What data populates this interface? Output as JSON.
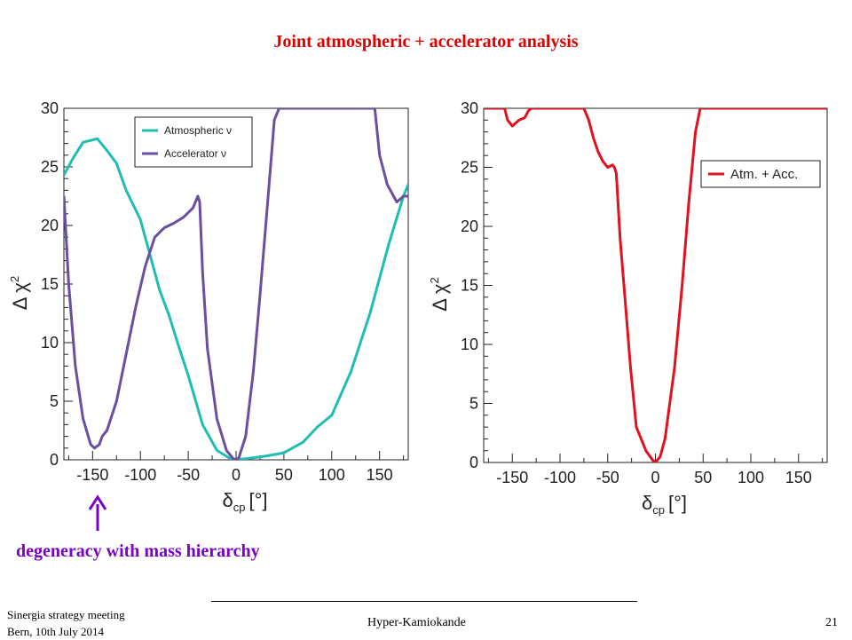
{
  "slide": {
    "title": "Joint atmospheric + accelerator analysis",
    "annotation": "degeneracy with mass hierarchy",
    "footer_left_line1": "Sinergia strategy meeting",
    "footer_left_line2": "Bern, 10th July 2014",
    "footer_center": "Hyper-Kamiokande",
    "page_number": "21"
  },
  "colors": {
    "title": "#e00000",
    "annotation": "#7a00c8",
    "atmospheric": "#1fbdb4",
    "accelerator": "#6a4ea0",
    "combined": "#e0121f",
    "arrow": "#7a00c8"
  },
  "chart_data": [
    {
      "type": "line",
      "xlabel_main": "δ",
      "xlabel_sub": "cp",
      "xlabel_unit": "[°]",
      "ylabel_main": "Δ χ",
      "ylabel_sup": "2",
      "xlim": [
        -180,
        180
      ],
      "ylim": [
        0,
        30
      ],
      "x_ticks": [
        -150,
        -100,
        -50,
        0,
        50,
        100,
        150
      ],
      "y_ticks": [
        0,
        5,
        10,
        15,
        20,
        25,
        30
      ],
      "legend_position": "top-right",
      "series": [
        {
          "name": "Atmospheric ν",
          "color": "#1fbdb4",
          "points": [
            [
              -180,
              24.3
            ],
            [
              -170,
              25.8
            ],
            [
              -160,
              27.1
            ],
            [
              -145,
              27.4
            ],
            [
              -135,
              26.4
            ],
            [
              -125,
              25.3
            ],
            [
              -115,
              23
            ],
            [
              -100,
              20.5
            ],
            [
              -90,
              17.5
            ],
            [
              -80,
              14.5
            ],
            [
              -70,
              12.3
            ],
            [
              -60,
              9.7
            ],
            [
              -50,
              7.2
            ],
            [
              -35,
              3
            ],
            [
              -20,
              0.8
            ],
            [
              -5,
              0.05
            ],
            [
              0,
              0
            ],
            [
              10,
              0.1
            ],
            [
              30,
              0.3
            ],
            [
              50,
              0.6
            ],
            [
              70,
              1.5
            ],
            [
              85,
              2.8
            ],
            [
              100,
              3.8
            ],
            [
              120,
              7.5
            ],
            [
              140,
              12.5
            ],
            [
              160,
              18.5
            ],
            [
              175,
              22.5
            ],
            [
              180,
              23.5
            ]
          ]
        },
        {
          "name": "Accelerator ν",
          "color": "#6a4ea0",
          "points": [
            [
              -180,
              22.5
            ],
            [
              -175,
              15
            ],
            [
              -168,
              8
            ],
            [
              -160,
              3.5
            ],
            [
              -152,
              1.3
            ],
            [
              -148,
              1
            ],
            [
              -143,
              1.3
            ],
            [
              -140,
              2
            ],
            [
              -135,
              2.5
            ],
            [
              -125,
              5
            ],
            [
              -115,
              9
            ],
            [
              -105,
              13
            ],
            [
              -95,
              16.5
            ],
            [
              -85,
              19
            ],
            [
              -75,
              19.8
            ],
            [
              -65,
              20.2
            ],
            [
              -55,
              20.7
            ],
            [
              -45,
              21.5
            ],
            [
              -40,
              22.5
            ],
            [
              -38,
              22
            ],
            [
              -35,
              16
            ],
            [
              -30,
              9.5
            ],
            [
              -20,
              3.5
            ],
            [
              -10,
              0.8
            ],
            [
              -3,
              0.1
            ],
            [
              0,
              0
            ],
            [
              3,
              0.2
            ],
            [
              10,
              2
            ],
            [
              18,
              7.5
            ],
            [
              25,
              14
            ],
            [
              33,
              22
            ],
            [
              40,
              29
            ],
            [
              45,
              30
            ],
            [
              145,
              30
            ],
            [
              150,
              26
            ],
            [
              158,
              23.5
            ],
            [
              168,
              22
            ],
            [
              175,
              22.5
            ],
            [
              180,
              22.5
            ]
          ]
        }
      ]
    },
    {
      "type": "line",
      "xlabel_main": "δ",
      "xlabel_sub": "cp",
      "xlabel_unit": "[°]",
      "ylabel_main": "Δ χ",
      "ylabel_sup": "2",
      "xlim": [
        -180,
        180
      ],
      "ylim": [
        0,
        30
      ],
      "x_ticks": [
        -150,
        -100,
        -50,
        0,
        50,
        100,
        150
      ],
      "y_ticks": [
        0,
        5,
        10,
        15,
        20,
        25,
        30
      ],
      "legend_position": "top-right",
      "series": [
        {
          "name": "Atm. + Acc.",
          "color": "#e0121f",
          "points": [
            [
              -180,
              30
            ],
            [
              -158,
              30
            ],
            [
              -155,
              29
            ],
            [
              -150,
              28.5
            ],
            [
              -143,
              29
            ],
            [
              -137,
              29.2
            ],
            [
              -133,
              29.8
            ],
            [
              -130,
              30
            ],
            [
              -75,
              30
            ],
            [
              -70,
              29
            ],
            [
              -65,
              27.5
            ],
            [
              -60,
              26.3
            ],
            [
              -55,
              25.5
            ],
            [
              -50,
              25
            ],
            [
              -45,
              25.2
            ],
            [
              -43,
              25
            ],
            [
              -41,
              24.5
            ],
            [
              -37,
              19
            ],
            [
              -32,
              14
            ],
            [
              -26,
              8
            ],
            [
              -20,
              3
            ],
            [
              -10,
              1
            ],
            [
              -3,
              0.2
            ],
            [
              0,
              0
            ],
            [
              5,
              0.5
            ],
            [
              10,
              2
            ],
            [
              20,
              8
            ],
            [
              28,
              15
            ],
            [
              35,
              22
            ],
            [
              42,
              28
            ],
            [
              47,
              30
            ],
            [
              180,
              30
            ]
          ]
        }
      ]
    }
  ]
}
